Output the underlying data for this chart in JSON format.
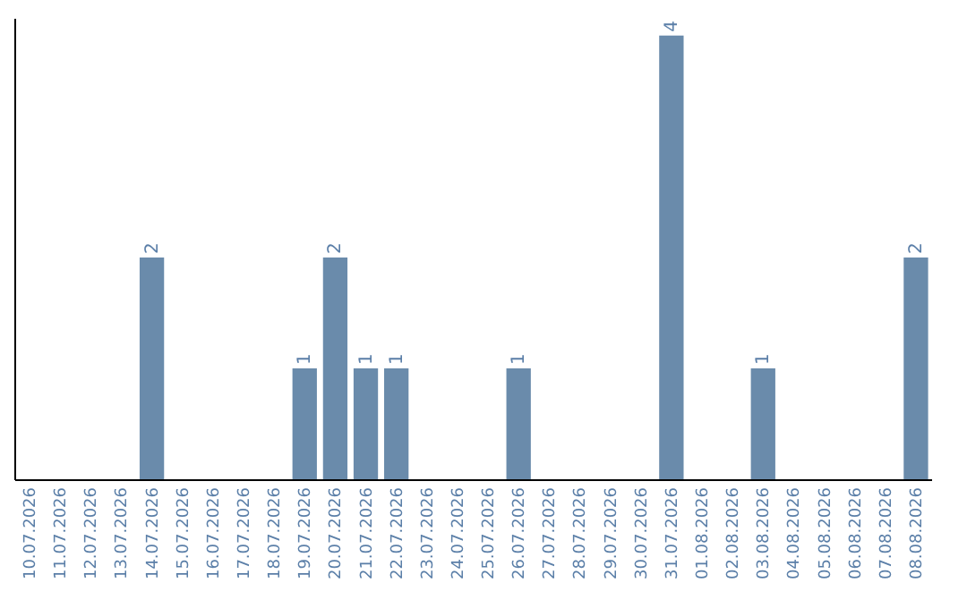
{
  "chart_data": {
    "type": "bar",
    "categories": [
      "10.07.2026",
      "11.07.2026",
      "12.07.2026",
      "13.07.2026",
      "14.07.2026",
      "15.07.2026",
      "16.07.2026",
      "17.07.2026",
      "18.07.2026",
      "19.07.2026",
      "20.07.2026",
      "21.07.2026",
      "22.07.2026",
      "23.07.2026",
      "24.07.2026",
      "25.07.2026",
      "26.07.2026",
      "27.07.2026",
      "28.07.2026",
      "29.07.2026",
      "30.07.2026",
      "31.07.2026",
      "01.08.2026",
      "02.08.2026",
      "03.08.2026",
      "04.08.2026",
      "05.08.2026",
      "06.08.2026",
      "07.08.2026",
      "08.08.2026"
    ],
    "values": [
      0,
      0,
      0,
      0,
      2,
      0,
      0,
      0,
      0,
      1,
      2,
      1,
      1,
      0,
      0,
      0,
      1,
      0,
      0,
      0,
      0,
      4,
      0,
      0,
      1,
      0,
      0,
      0,
      0,
      2
    ],
    "value_labels": [
      null,
      null,
      null,
      null,
      "2",
      null,
      null,
      null,
      null,
      "1",
      "2",
      "1",
      "1",
      null,
      null,
      null,
      "1",
      null,
      null,
      null,
      null,
      "4",
      null,
      null,
      "1",
      null,
      null,
      null,
      null,
      "2"
    ],
    "color": "#6a8bab",
    "tick_labels": "x",
    "grid": false
  }
}
